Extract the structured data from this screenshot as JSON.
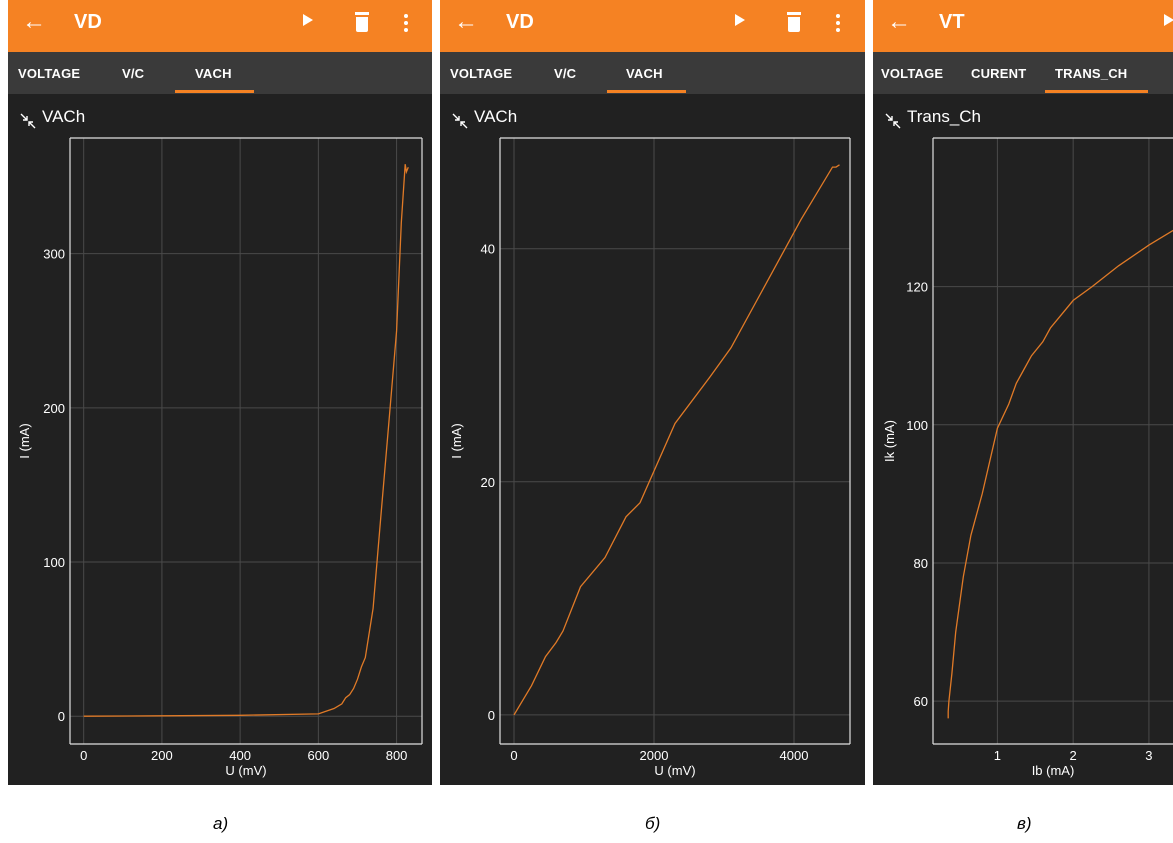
{
  "panels": [
    {
      "appbar_title": "VD",
      "tabs": [
        "VOLTAGE",
        "V/C",
        "VACH"
      ],
      "active_tab": 2,
      "plot_title": "VACh",
      "caption": "а)"
    },
    {
      "appbar_title": "VD",
      "tabs": [
        "VOLTAGE",
        "V/C",
        "VACH"
      ],
      "active_tab": 2,
      "plot_title": "VACh",
      "caption": "б)"
    },
    {
      "appbar_title": "VT",
      "tabs": [
        "VOLTAGE",
        "CURENT",
        "TRANS_CH"
      ],
      "active_tab": 2,
      "plot_title": "Trans_Ch",
      "caption": "в)"
    }
  ],
  "icons": {
    "back": "arrow-left-icon",
    "play": "play-icon",
    "delete": "trash-icon",
    "menu": "more-vert-icon",
    "collapse": "collapse-arrows-icon"
  },
  "colors": {
    "appbar": "#f58223",
    "tabbar": "#3a3a3a",
    "background": "#212121",
    "series": "#e07a27",
    "grid": "#4a4a4a",
    "frame": "#e0e0e0",
    "tab_indicator": "#f58223"
  },
  "chart_data": [
    {
      "type": "line",
      "title": "VACh",
      "xlabel": "U (mV)",
      "ylabel": "I (mA)",
      "xlim": [
        -35,
        865
      ],
      "ylim": [
        -18,
        375
      ],
      "xticks": [
        0,
        200,
        400,
        600,
        800
      ],
      "yticks": [
        0,
        100,
        200,
        300
      ],
      "grid": true,
      "series": [
        {
          "x": [
            0,
            200,
            400,
            600,
            640,
            660,
            670,
            680,
            690,
            700,
            710,
            720,
            740,
            760,
            780,
            800,
            812,
            822,
            825,
            830
          ],
          "y": [
            0,
            0.3,
            0.6,
            1.5,
            5,
            8,
            12,
            14,
            18,
            24,
            32,
            38,
            70,
            130,
            190,
            250,
            320,
            358,
            353,
            356
          ]
        }
      ]
    },
    {
      "type": "line",
      "title": "VACh",
      "xlabel": "U (mV)",
      "ylabel": "I (mA)",
      "xlim": [
        -200,
        4800
      ],
      "ylim": [
        -2.5,
        49.5
      ],
      "xticks": [
        0,
        2000,
        4000
      ],
      "yticks": [
        0,
        20,
        40
      ],
      "grid": true,
      "series": [
        {
          "x": [
            0,
            250,
            450,
            600,
            700,
            950,
            1300,
            1600,
            1800,
            2300,
            2800,
            3100,
            3600,
            4100,
            4550,
            4600,
            4650
          ],
          "y": [
            0,
            2.5,
            5,
            6.2,
            7.2,
            11,
            13.5,
            17,
            18.2,
            25,
            29,
            31.5,
            37,
            42.5,
            47,
            47,
            47.2
          ]
        }
      ]
    },
    {
      "type": "line",
      "title": "Trans_Ch",
      "xlabel": "Ib (mA)",
      "ylabel": "Ik (mA)",
      "xlim": [
        0.15,
        3.45
      ],
      "ylim": [
        53.8,
        141.5
      ],
      "xticks": [
        1,
        2,
        3
      ],
      "yticks": [
        60,
        80,
        100,
        120
      ],
      "grid": true,
      "series": [
        {
          "x": [
            0.35,
            0.35,
            0.36,
            0.4,
            0.45,
            0.55,
            0.65,
            0.8,
            1.0,
            1.15,
            1.25,
            1.35,
            1.45,
            1.6,
            1.7,
            1.85,
            2.0,
            2.25,
            2.6,
            3.0,
            3.45
          ],
          "y": [
            57.5,
            58.5,
            60,
            64,
            70,
            78,
            84,
            90,
            99.5,
            103,
            106,
            108,
            110,
            112,
            114,
            116,
            118,
            120,
            123,
            126,
            129
          ]
        }
      ]
    }
  ]
}
